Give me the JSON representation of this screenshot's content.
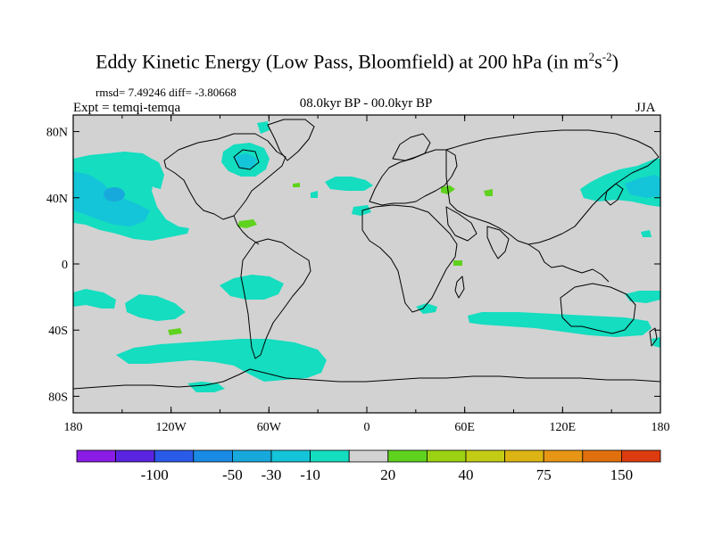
{
  "title_main": "Eddy Kinetic Energy (Low Pass, Bloomfield) at 200 hPa (in m",
  "title_sup1": "2",
  "title_mid": "s",
  "title_sup2": "-2",
  "title_end": ")",
  "stats": "rmsd= 7.49246 diff= -3.80668",
  "experiment": "Expt = temqi-temqa",
  "period": "08.0kyr BP - 00.0kyr BP",
  "season": "JJA",
  "lon_ticks": [
    "180",
    "120W",
    "60W",
    "0",
    "60E",
    "120E",
    "180"
  ],
  "lat_ticks": [
    "80N",
    "40N",
    "0",
    "40S",
    "80S"
  ],
  "colorbar": {
    "colors": [
      "#8a1ce6",
      "#5a24e0",
      "#2a5ae8",
      "#1a8be4",
      "#18a9dc",
      "#14c4d8",
      "#14ddc0",
      "#d2d2d2",
      "#5fd21e",
      "#9bd214",
      "#c3cc14",
      "#dcb414",
      "#e69614",
      "#e0700e",
      "#dc3c10"
    ],
    "labels": [
      "-100",
      "-50",
      "-30",
      "-10",
      "20",
      "40",
      "75",
      "150"
    ]
  },
  "colors": {
    "background": "#d2d2d2",
    "anomaly_light": "#14ddc0",
    "anomaly_mid": "#14c4d8",
    "anomaly_positive": "#5fd21e",
    "coastline": "#000000"
  }
}
